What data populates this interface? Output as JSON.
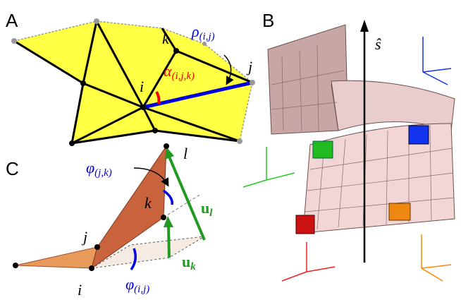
{
  "panels": [
    {
      "label": "A",
      "annotations": [
        {
          "symbol": "ρ",
          "subscript": "(i,j)"
        },
        {
          "symbol": "α",
          "subscript": "(i,j,k)"
        },
        {
          "symbol": "i"
        },
        {
          "symbol": "j"
        },
        {
          "symbol": "k"
        }
      ]
    },
    {
      "label": "B",
      "annotations": [
        {
          "symbol": "ŝ"
        }
      ]
    },
    {
      "label": "C",
      "annotations": [
        {
          "symbol": "φ",
          "subscript": "(j,k)"
        },
        {
          "symbol": "φ",
          "subscript": "(i,j)"
        },
        {
          "symbol": "l"
        },
        {
          "symbol": "k"
        },
        {
          "symbol": "j"
        },
        {
          "symbol": "i"
        },
        {
          "symbol": "u",
          "subscript": "l"
        },
        {
          "symbol": "u",
          "subscript": "k"
        }
      ]
    }
  ]
}
